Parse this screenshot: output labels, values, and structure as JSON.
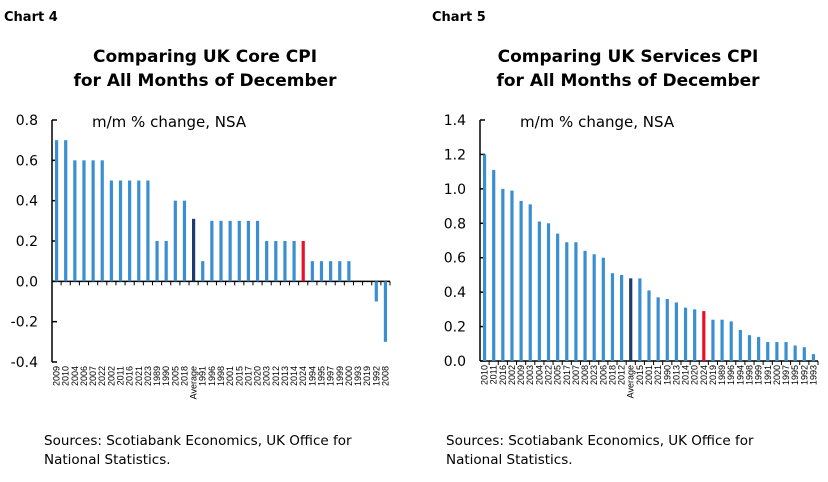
{
  "colors": {
    "bar": "#3a8fd0",
    "average": "#1f3a6e",
    "current": "#e8102a"
  },
  "chart_data": [
    {
      "type": "bar",
      "number": "Chart 4",
      "title": [
        "Comparing UK Core CPI",
        "for All Months of December"
      ],
      "ylabel": "m/m % change, NSA",
      "ylim": [
        -0.4,
        0.8
      ],
      "yticks": [
        "0.8",
        "0.6",
        "0.4",
        "0.2",
        "0.0",
        "-0.2",
        "-0.4"
      ],
      "ytick_values": [
        0.8,
        0.6,
        0.4,
        0.2,
        0.0,
        -0.2,
        -0.4
      ],
      "categories": [
        "2009",
        "2010",
        "2004",
        "2006",
        "2007",
        "2022",
        "2002",
        "2011",
        "2016",
        "2021",
        "2023",
        "1989",
        "1990",
        "2005",
        "2018",
        "Average",
        "1991",
        "1996",
        "1998",
        "2001",
        "2015",
        "2017",
        "2020",
        "2003",
        "2012",
        "2013",
        "2014",
        "2024",
        "1994",
        "1995",
        "1997",
        "1999",
        "2000",
        "1993",
        "2019",
        "1992",
        "2008"
      ],
      "values": [
        0.7,
        0.7,
        0.6,
        0.6,
        0.6,
        0.6,
        0.5,
        0.5,
        0.5,
        0.5,
        0.5,
        0.2,
        0.2,
        0.4,
        0.4,
        0.31,
        0.1,
        0.3,
        0.3,
        0.3,
        0.3,
        0.3,
        0.3,
        0.2,
        0.2,
        0.2,
        0.2,
        0.2,
        0.1,
        0.1,
        0.1,
        0.1,
        0.1,
        0.0,
        0.0,
        -0.1,
        -0.3
      ],
      "highlight": {
        "Average": "average",
        "2024": "current"
      },
      "source": [
        "Sources: Scotiabank Economics, UK Office for",
        "National Statistics."
      ]
    },
    {
      "type": "bar",
      "number": "Chart 5",
      "title": [
        "Comparing UK Services CPI",
        "for All Months of December"
      ],
      "ylabel": "m/m % change, NSA",
      "ylim": [
        0.0,
        1.4
      ],
      "yticks": [
        "1.4",
        "1.2",
        "1.0",
        "0.8",
        "0.6",
        "0.4",
        "0.2",
        "0.0"
      ],
      "ytick_values": [
        1.4,
        1.2,
        1.0,
        0.8,
        0.6,
        0.4,
        0.2,
        0.0
      ],
      "categories": [
        "2010",
        "2011",
        "2016",
        "2002",
        "2009",
        "2003",
        "2004",
        "2022",
        "2005",
        "2017",
        "2007",
        "2008",
        "2023",
        "2006",
        "2018",
        "2012",
        "Average",
        "2015",
        "2001",
        "2021",
        "1990",
        "2013",
        "2014",
        "2020",
        "2024",
        "2019",
        "1989",
        "1996",
        "1994",
        "1998",
        "1999",
        "1991",
        "2000",
        "1997",
        "1995",
        "1992",
        "1993"
      ],
      "values": [
        1.2,
        1.11,
        1.0,
        0.99,
        0.93,
        0.91,
        0.81,
        0.8,
        0.74,
        0.69,
        0.69,
        0.64,
        0.62,
        0.6,
        0.51,
        0.5,
        0.48,
        0.48,
        0.41,
        0.37,
        0.36,
        0.34,
        0.31,
        0.3,
        0.29,
        0.24,
        0.24,
        0.23,
        0.18,
        0.15,
        0.14,
        0.11,
        0.11,
        0.11,
        0.09,
        0.08,
        0.04
      ],
      "highlight": {
        "Average": "average",
        "2024": "current"
      },
      "source": [
        "Sources: Scotiabank Economics, UK Office for",
        "National Statistics."
      ]
    }
  ]
}
